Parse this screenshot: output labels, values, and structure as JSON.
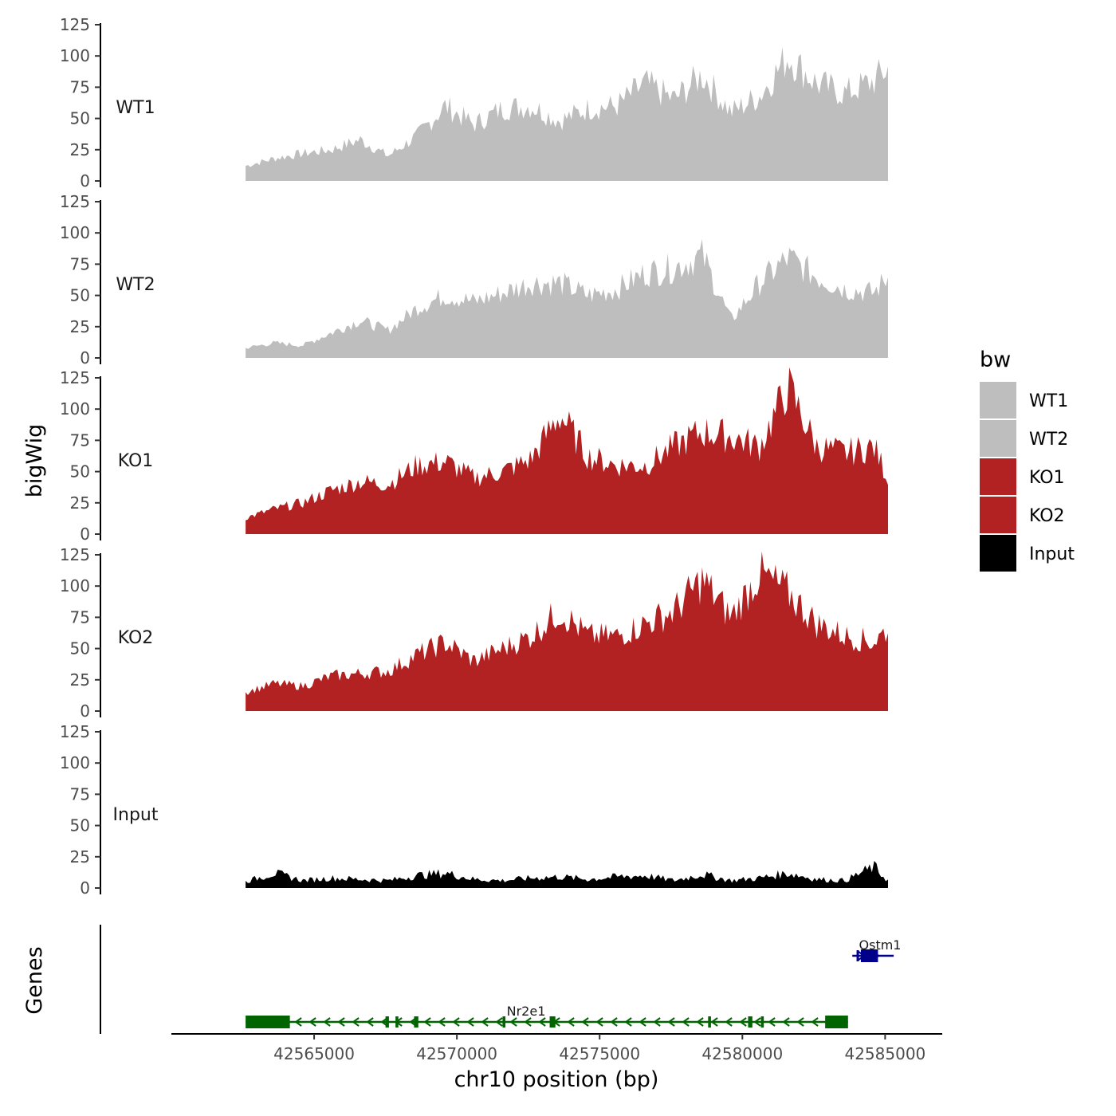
{
  "chart_data": {
    "type": "area",
    "region": {
      "chromosome": "chr10",
      "start": 42562600,
      "end": 42585100
    },
    "xlabel": "chr10 position (bp)",
    "x_ticks": [
      42565000,
      42570000,
      42575000,
      42580000,
      42585000
    ],
    "x_tick_labels": [
      "42565000",
      "42570000",
      "42575000",
      "42580000",
      "42585000"
    ],
    "xlim": [
      42560000,
      42587000
    ],
    "ylabel": "bigWig",
    "ylim": [
      0,
      125
    ],
    "y_ticks": [
      0,
      25,
      50,
      75,
      100,
      125
    ],
    "y_tick_labels": [
      "0",
      "25",
      "50",
      "75",
      "100",
      "125"
    ],
    "tracks": [
      {
        "name": "WT1",
        "color": "#bebebe",
        "x": [
          42562600,
          42563600,
          42564600,
          42565600,
          42566600,
          42567600,
          42568600,
          42569600,
          42570600,
          42571600,
          42572600,
          42573600,
          42574600,
          42575600,
          42576600,
          42577600,
          42578600,
          42579600,
          42580600,
          42581600,
          42582600,
          42583600,
          42584600,
          42585100
        ],
        "values": [
          12,
          18,
          22,
          25,
          33,
          20,
          36,
          60,
          45,
          58,
          60,
          48,
          58,
          60,
          78,
          65,
          85,
          55,
          68,
          100,
          78,
          70,
          80,
          90
        ]
      },
      {
        "name": "WT2",
        "color": "#bebebe",
        "x": [
          42562600,
          42563600,
          42564600,
          42565600,
          42566600,
          42567600,
          42568600,
          42569600,
          42570600,
          42571600,
          42572600,
          42573600,
          42574600,
          42575600,
          42576600,
          42577600,
          42578600,
          42579600,
          42580600,
          42581600,
          42582600,
          42583600,
          42584600,
          42585100
        ],
        "values": [
          8,
          12,
          10,
          20,
          30,
          22,
          40,
          50,
          45,
          52,
          60,
          60,
          50,
          55,
          68,
          72,
          82,
          30,
          60,
          80,
          65,
          55,
          52,
          65
        ]
      },
      {
        "name": "KO1",
        "color": "#b22222",
        "x": [
          42562600,
          42563600,
          42564600,
          42565600,
          42566600,
          42567600,
          42568600,
          42569600,
          42570600,
          42571600,
          42572600,
          42573600,
          42574600,
          42575600,
          42576600,
          42577600,
          42578600,
          42579600,
          42580600,
          42581600,
          42582600,
          42583600,
          42584600,
          42585100
        ],
        "values": [
          13,
          20,
          25,
          35,
          42,
          40,
          55,
          58,
          45,
          50,
          60,
          96,
          62,
          55,
          55,
          70,
          82,
          78,
          70,
          118,
          70,
          65,
          70,
          45
        ]
      },
      {
        "name": "KO2",
        "color": "#b22222",
        "x": [
          42562600,
          42563600,
          42564600,
          42565600,
          42566600,
          42567600,
          42568600,
          42569600,
          42570600,
          42571600,
          42572600,
          42573600,
          42574600,
          42575600,
          42576600,
          42577600,
          42578600,
          42579600,
          42580600,
          42581600,
          42582600,
          42583600,
          42584600,
          42585100
        ],
        "values": [
          15,
          22,
          20,
          28,
          30,
          32,
          45,
          55,
          40,
          50,
          60,
          80,
          60,
          60,
          70,
          80,
          105,
          75,
          110,
          95,
          70,
          60,
          55,
          66
        ]
      },
      {
        "name": "Input",
        "color": "#000000",
        "x": [
          42562600,
          42563600,
          42564600,
          42565600,
          42566600,
          42567600,
          42568600,
          42569600,
          42570600,
          42571600,
          42572600,
          42573600,
          42574600,
          42575600,
          42576600,
          42577600,
          42578600,
          42579600,
          42580600,
          42581600,
          42582600,
          42583600,
          42584600,
          42585100
        ],
        "values": [
          5,
          12,
          6,
          8,
          7,
          6,
          10,
          12,
          7,
          6,
          8,
          9,
          7,
          9,
          10,
          6,
          11,
          6,
          8,
          12,
          7,
          6,
          17,
          6
        ]
      }
    ],
    "legend": {
      "title": "bw",
      "position": "right",
      "entries": [
        {
          "label": "WT1",
          "color": "#bebebe"
        },
        {
          "label": "WT2",
          "color": "#bebebe"
        },
        {
          "label": "KO1",
          "color": "#b22222"
        },
        {
          "label": "KO2",
          "color": "#b22222"
        },
        {
          "label": "Input",
          "color": "#000000"
        }
      ]
    },
    "genes_panel": {
      "title": "Genes",
      "genes": [
        {
          "name": "Nr2e1",
          "strand": "-",
          "color": "#006400",
          "start": 42562600,
          "end": 42583700,
          "exons": [
            [
              42562600,
              42564150
            ],
            [
              42567500,
              42567620
            ],
            [
              42567850,
              42567950
            ],
            [
              42568500,
              42568650
            ],
            [
              42571600,
              42571700
            ],
            [
              42573250,
              42573450
            ],
            [
              42578800,
              42578900
            ],
            [
              42580200,
              42580350
            ],
            [
              42580650,
              42580750
            ],
            [
              42582900,
              42583700
            ]
          ]
        },
        {
          "name": "Ostm1",
          "strand": "+",
          "color": "#00008b",
          "start": 42583850,
          "end": 42585300,
          "exons": [
            [
              42584000,
              42584050
            ],
            [
              42584150,
              42584750
            ]
          ]
        }
      ]
    }
  }
}
